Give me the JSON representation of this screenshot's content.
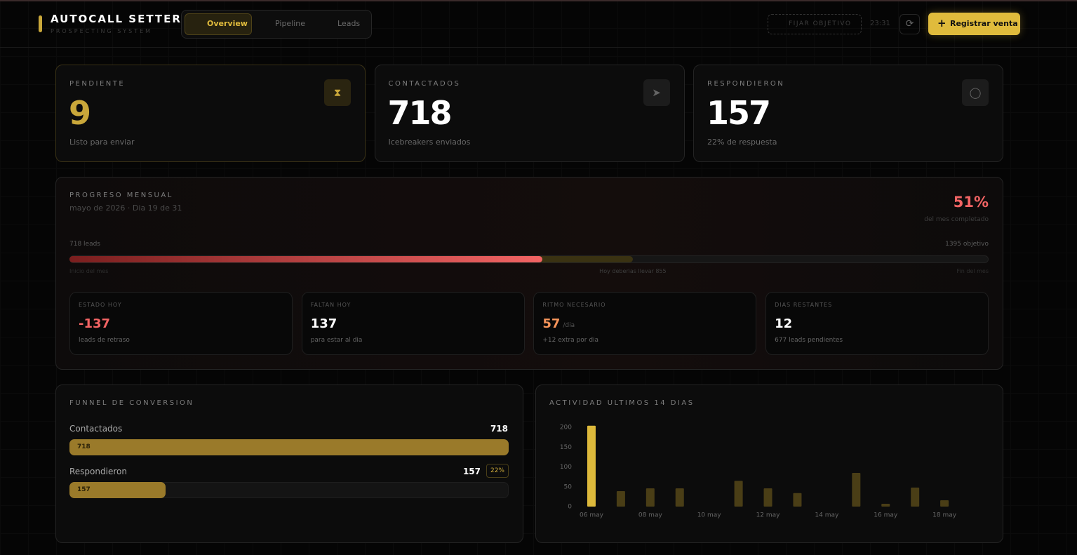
{
  "header": {
    "brand": "AUTOCALL SETTER",
    "tagline": "PROSPECTING SYSTEM",
    "nav": [
      "Overview",
      "Pipeline",
      "Leads"
    ],
    "goal_button": "FIJAR OBJETIVO",
    "time": "23:31",
    "cta": "Registrar venta"
  },
  "stats": [
    {
      "label": "PENDIENTE",
      "value": 9,
      "note": "Listo para enviar",
      "color": "#c9a73a"
    },
    {
      "label": "CONTACTADOS",
      "value": 718,
      "note": "Icebreakers enviados",
      "color": "#ffffff"
    },
    {
      "label": "RESPONDIERON",
      "value": 157,
      "note": "22% de respuesta",
      "color": "#ffffff"
    }
  ],
  "progress": {
    "title": "PROGRESO MENSUAL",
    "subtitle": "mayo de 2026 · Dia 19 de 31",
    "percent": "51%",
    "percent_note": "del mes completado",
    "done_label": "718 leads",
    "goal_label": "1395 objetivo",
    "done": 718,
    "expected": 855,
    "goal": 1395,
    "start_label": "Inicio del mes",
    "expected_label": "Hoy deberias llevar 855",
    "end_label": "Fin del mes",
    "kpis": [
      {
        "label": "ESTADO HOY",
        "value": -137,
        "note": "leads de retraso",
        "color": "#f26464"
      },
      {
        "label": "FALTAN HOY",
        "value": 137,
        "note": "para estar al dia",
        "color": "#ffffff"
      },
      {
        "label": "RITMO NECESARIO",
        "value": 57,
        "unit": "/dia",
        "note": "+12 extra por dia",
        "color": "#f5945a"
      },
      {
        "label": "DIAS RESTANTES",
        "value": 12,
        "note": "677 leads pendientes",
        "color": "#ffffff"
      }
    ]
  },
  "funnel": {
    "title": "FUNNEL DE CONVERSION",
    "rows": [
      {
        "label": "Contactados",
        "value": 718
      },
      {
        "label": "Respondieron",
        "value": 157,
        "rate": "22%"
      }
    ]
  },
  "chart_data": {
    "type": "bar",
    "title": "ACTIVIDAD ULTIMOS 14 DIAS",
    "categories": [
      "06 may",
      null,
      "08 may",
      null,
      "10 may",
      null,
      "12 may",
      null,
      "14 may",
      null,
      "16 may",
      null,
      "18 may",
      null
    ],
    "values": [
      204,
      39,
      46,
      46,
      0,
      65,
      46,
      34,
      0,
      85,
      7,
      48,
      16,
      0
    ],
    "color": "#4a3e16",
    "highlight_color": "#ddb93b",
    "ylim": [
      0,
      216
    ],
    "yticks": [
      0,
      50,
      100,
      150,
      200
    ]
  }
}
